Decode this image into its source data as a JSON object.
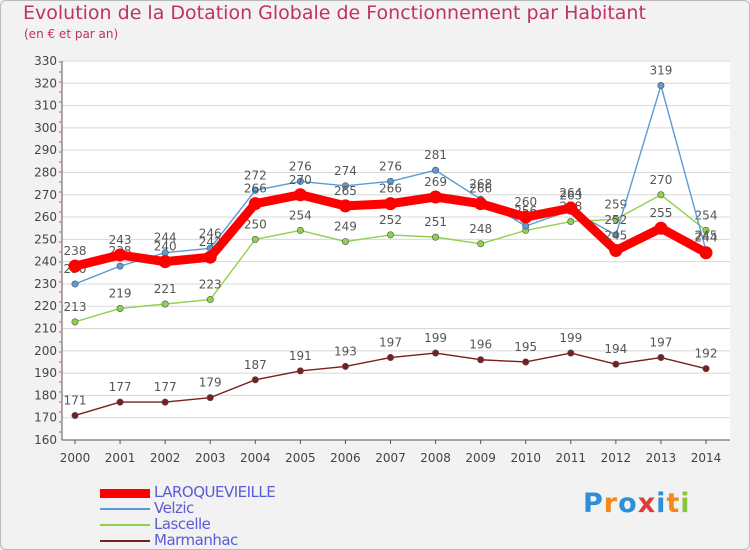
{
  "chart_data": {
    "type": "line",
    "title": "Evolution de la Dotation Globale de Fonctionnement par Habitant",
    "subtitle": "(en € et par an)",
    "xlabel": "",
    "ylabel": "",
    "ylim": [
      160,
      330
    ],
    "ytick_step": 10,
    "grid": "horizontal",
    "legend_position": "bottom-left",
    "categories": [
      "2000",
      "2001",
      "2002",
      "2003",
      "2004",
      "2005",
      "2006",
      "2007",
      "2008",
      "2009",
      "2010",
      "2011",
      "2012",
      "2013",
      "2014"
    ],
    "series": [
      {
        "name": "Marmanhac",
        "color": "#7a1e1e",
        "values": [
          171,
          177,
          177,
          179,
          187,
          191,
          193,
          197,
          199,
          196,
          195,
          199,
          194,
          197,
          192
        ]
      },
      {
        "name": "Lascelle",
        "color": "#8fd14f",
        "values": [
          213,
          219,
          221,
          223,
          250,
          254,
          249,
          252,
          251,
          248,
          254,
          258,
          259,
          270,
          254
        ]
      },
      {
        "name": "Velzic",
        "color": "#5b9bd5",
        "values": [
          230,
          238,
          244,
          246,
          272,
          276,
          274,
          276,
          281,
          268,
          256,
          263,
          252,
          319,
          245
        ]
      },
      {
        "name": "LAROQUEVIEILLE",
        "color": "#ff0000",
        "values": [
          238,
          243,
          240,
          242,
          266,
          270,
          265,
          266,
          269,
          266,
          260,
          264,
          245,
          255,
          244
        ]
      }
    ]
  },
  "legend": {
    "items": [
      {
        "name": "LAROQUEVIEILLE",
        "color": "#ff0000",
        "thick": true
      },
      {
        "name": "Velzic",
        "color": "#5b9bd5",
        "thick": false
      },
      {
        "name": "Lascelle",
        "color": "#8fd14f",
        "thick": false
      },
      {
        "name": "Marmanhac",
        "color": "#7a1e1e",
        "thick": false
      }
    ]
  },
  "logo": {
    "letters": [
      "P",
      "r",
      "o",
      "x",
      "i",
      "t",
      "i"
    ],
    "colors": [
      "#2e8fd6",
      "#f08a1c",
      "#2e8fd6",
      "#e03a3a",
      "#2e8fd6",
      "#f08a1c",
      "#8cc63f"
    ]
  }
}
